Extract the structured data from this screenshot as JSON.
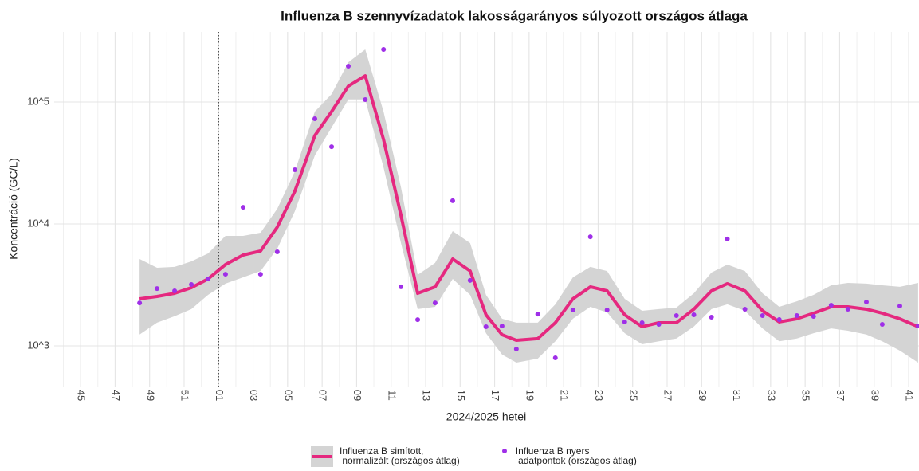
{
  "chart_data": {
    "type": "line",
    "title": "Influenza B szennyvízadatok lakosságarányos súlyozott országos átlaga",
    "x_label": "2024/2025 hetei",
    "y_label": "Koncentráció (GC/L)",
    "log_y": true,
    "grid": true,
    "legend_position": "bottom",
    "xlim": [
      43.47,
      93.6
    ],
    "xticks": [
      45,
      47,
      49,
      51,
      {
        "value": 53,
        "label": "01"
      },
      {
        "value": 55,
        "label": "03"
      },
      {
        "value": 57,
        "label": "05"
      },
      {
        "value": 59,
        "label": "07"
      },
      {
        "value": 61,
        "label": "09"
      },
      {
        "value": 63,
        "label": "11"
      },
      {
        "value": 65,
        "label": "13"
      },
      {
        "value": 67,
        "label": "15"
      },
      {
        "value": 69,
        "label": "17"
      },
      {
        "value": 71,
        "label": "19"
      },
      {
        "value": 73,
        "label": "21"
      },
      {
        "value": 75,
        "label": "23"
      },
      {
        "value": 77,
        "label": "25"
      },
      {
        "value": 79,
        "label": "27"
      },
      {
        "value": 81,
        "label": "29"
      },
      {
        "value": 83,
        "label": "31"
      },
      {
        "value": 85,
        "label": "33"
      },
      {
        "value": 87,
        "label": "35"
      },
      {
        "value": 89,
        "label": "37"
      },
      {
        "value": 91,
        "label": "39"
      },
      {
        "value": 93,
        "label": "41"
      }
    ],
    "ylim": [
      464,
      376000
    ],
    "yticks": [
      {
        "value": 1000,
        "label": "10^3"
      },
      {
        "value": 10000,
        "label": "10^4"
      },
      {
        "value": 100000,
        "label": "10^5"
      }
    ],
    "vline": 53,
    "series": [
      {
        "name": "Influenza B simított,\n normalizált (országos átlag)",
        "style": "smooth",
        "color": "#e5287f",
        "band_color": "#d4d4d4",
        "x": [
          48.42,
          49.43,
          50.45,
          51.42,
          52.39,
          53.4,
          54.42,
          55.43,
          56.4,
          57.42,
          58.58,
          59.55,
          60.52,
          61.5,
          62.56,
          63.57,
          64.54,
          65.55,
          66.57,
          67.58,
          68.5,
          69.43,
          70.26,
          71.5,
          72.52,
          73.54,
          74.55,
          75.52,
          76.54,
          77.55,
          78.52,
          79.54,
          80.55,
          81.57,
          82.49,
          83.51,
          84.53,
          85.5,
          86.52,
          87.49,
          88.51,
          89.48,
          90.55,
          91.47,
          92.49,
          93.55
        ],
        "values": [
          2432,
          2541,
          2698,
          2999,
          3540,
          4645,
          5560,
          5995,
          9420,
          18540,
          53100,
          83500,
          135000,
          164000,
          49300,
          11800,
          2698,
          3046,
          5155,
          4115,
          1799,
          1235,
          1111,
          1146,
          1548,
          2432,
          3046,
          2825,
          1799,
          1435,
          1548,
          1548,
          1999,
          2825,
          3236,
          2825,
          1940,
          1571,
          1667,
          1853,
          2090,
          2090,
          1999,
          1853,
          1667,
          1435
        ],
        "upper": [
          5160,
          4370,
          4440,
          4930,
          5730,
          7980,
          7980,
          8470,
          13300,
          27000,
          83500,
          116000,
          212000,
          270000,
          83500,
          20000,
          3820,
          4790,
          8730,
          6970,
          2620,
          1670,
          1550,
          1550,
          2190,
          3650,
          4440,
          4110,
          2430,
          1940,
          2000,
          2060,
          2700,
          3990,
          4640,
          4110,
          2700,
          2090,
          2320,
          2620,
          3140,
          3280,
          3240,
          3140,
          3050,
          3280
        ],
        "lower": [
          1240,
          1550,
          1750,
          2000,
          2620,
          3240,
          3650,
          4110,
          6270,
          12700,
          36500,
          61800,
          105000,
          105000,
          29100,
          6970,
          2000,
          2090,
          3540,
          2620,
          1270,
          848,
          729,
          786,
          1090,
          1670,
          2090,
          1880,
          1270,
          1030,
          1090,
          1150,
          1440,
          2000,
          2190,
          1940,
          1390,
          1090,
          1150,
          1270,
          1390,
          1330,
          1240,
          1090,
          914,
          729
        ]
      },
      {
        "name": "Influenza B nyers\n adatpontok (országos átlag)",
        "style": "points",
        "color": "#9f2fe8",
        "x": [
          48.42,
          49.43,
          50.45,
          51.42,
          52.39,
          53.4,
          54.42,
          55.43,
          56.4,
          57.42,
          58.58,
          59.55,
          60.52,
          61.5,
          62.56,
          63.57,
          64.54,
          65.55,
          66.57,
          67.58,
          68.5,
          69.43,
          70.26,
          71.5,
          72.52,
          73.54,
          74.55,
          75.52,
          76.54,
          77.55,
          78.52,
          79.54,
          80.55,
          81.57,
          82.49,
          83.51,
          84.53,
          85.5,
          86.52,
          87.49,
          88.51,
          89.48,
          90.55,
          91.47,
          92.49,
          93.55
        ],
        "values": [
          2250,
          2950,
          2825,
          3185,
          3540,
          3870,
          13700,
          3870,
          5900,
          27800,
          72900,
          43000,
          196700,
          104700,
          270000,
          3050,
          1640,
          2250,
          15500,
          3440,
          1435,
          1455,
          942,
          1823,
          798,
          1968,
          7850,
          1968,
          1571,
          1547,
          1501,
          1771,
          1798,
          1718,
          7520,
          1998,
          1771,
          1642,
          1771,
          1745,
          2153,
          1998,
          2287,
          1501,
          2121,
          1455
        ]
      }
    ]
  }
}
